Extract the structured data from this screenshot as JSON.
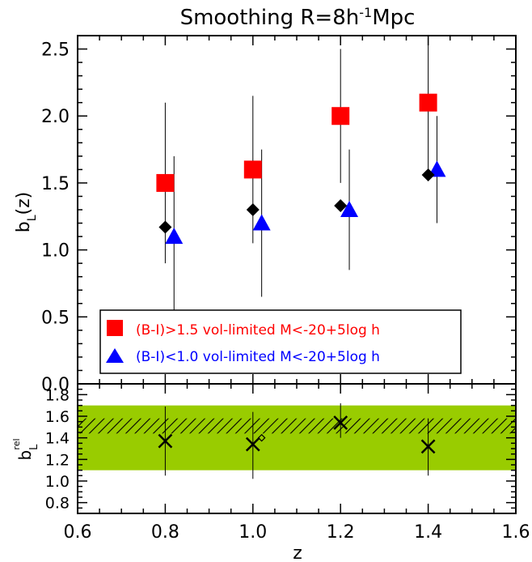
{
  "chart_data": [
    {
      "type": "scatter",
      "title": "Smoothing R=8h⁻¹Mpc",
      "xlabel": "",
      "ylabel": "b_L(z)",
      "xlim": [
        0.6,
        1.6
      ],
      "ylim": [
        0.0,
        2.6
      ],
      "xticks": [
        "0.6",
        "0.8",
        "1.0",
        "1.2",
        "1.4",
        "1.6"
      ],
      "yticks": [
        "0.0",
        "0.5",
        "1.0",
        "1.5",
        "2.0",
        "2.5"
      ],
      "legend_position": "bottom-left",
      "series": [
        {
          "name": "(B-I)>1.5 vol-limited M<-20+5log h",
          "marker": "square",
          "color": "#ff0000",
          "points": [
            {
              "x": 0.8,
              "y": 1.5,
              "ylo": 0.9,
              "yhi": 2.1
            },
            {
              "x": 1.0,
              "y": 1.6,
              "ylo": 1.05,
              "yhi": 2.15
            },
            {
              "x": 1.2,
              "y": 2.0,
              "ylo": 1.5,
              "yhi": 2.5
            },
            {
              "x": 1.4,
              "y": 2.1,
              "ylo": 1.6,
              "yhi": 2.6
            }
          ]
        },
        {
          "name": "(B-I)<1.0 vol-limited M<-20+5log h",
          "marker": "triangle",
          "color": "#0000ff",
          "points": [
            {
              "x": 0.82,
              "y": 1.1,
              "ylo": 0.5,
              "yhi": 1.7
            },
            {
              "x": 1.02,
              "y": 1.2,
              "ylo": 0.65,
              "yhi": 1.75
            },
            {
              "x": 1.22,
              "y": 1.3,
              "ylo": 0.85,
              "yhi": 1.75
            },
            {
              "x": 1.42,
              "y": 1.6,
              "ylo": 1.2,
              "yhi": 2.0
            }
          ]
        },
        {
          "name": "",
          "marker": "diamond",
          "color": "#000000",
          "points": [
            {
              "x": 0.8,
              "y": 1.17
            },
            {
              "x": 1.0,
              "y": 1.3
            },
            {
              "x": 1.2,
              "y": 1.33
            },
            {
              "x": 1.4,
              "y": 1.56
            }
          ]
        }
      ]
    },
    {
      "type": "scatter",
      "title": "",
      "xlabel": "z",
      "ylabel": "b_L^rel",
      "xlim": [
        0.6,
        1.6
      ],
      "ylim": [
        0.7,
        1.9
      ],
      "xticks": [
        "0.6",
        "0.8",
        "1.0",
        "1.2",
        "1.4",
        "1.6"
      ],
      "yticks": [
        "0.8",
        "1.0",
        "1.2",
        "1.4",
        "1.6",
        "1.8"
      ],
      "bands": [
        {
          "kind": "solid",
          "color": "#99cc00",
          "ymin": 1.1,
          "ymax": 1.7
        },
        {
          "kind": "hatched",
          "color": "#000000",
          "ymin": 1.44,
          "ymax": 1.58
        }
      ],
      "series": [
        {
          "name": "",
          "marker": "x",
          "color": "#000000",
          "points": [
            {
              "x": 0.8,
              "y": 1.37,
              "ylo": 1.05,
              "yhi": 1.69
            },
            {
              "x": 1.0,
              "y": 1.34,
              "ylo": 1.02,
              "yhi": 1.64
            },
            {
              "x": 1.2,
              "y": 1.54,
              "ylo": 1.4,
              "yhi": 1.72
            },
            {
              "x": 1.4,
              "y": 1.32,
              "ylo": 1.05,
              "yhi": 1.58
            }
          ]
        },
        {
          "name": "",
          "marker": "diamond-open",
          "color": "#000000",
          "points": [
            {
              "x": 1.02,
              "y": 1.4
            }
          ]
        }
      ]
    }
  ]
}
